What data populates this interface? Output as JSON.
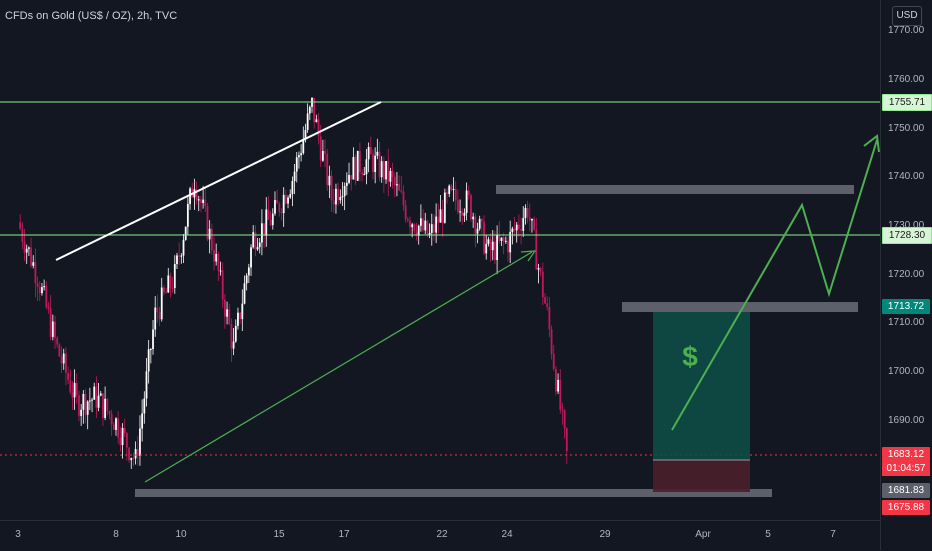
{
  "header": {
    "symbol_title": "CFDs on Gold (US$ / OZ), 2h, TVC"
  },
  "price_axis": {
    "currency": "USD",
    "ticks": [
      "1770.00",
      "1760.00",
      "1750.00",
      "1740.00",
      "1730.00",
      "1720.00",
      "1710.00",
      "1700.00",
      "1690.00"
    ],
    "labels": {
      "resistance_top": "1755.71",
      "resistance_mid": "1728.30",
      "entry": "1713.72",
      "current_price": "1683.12",
      "countdown": "01:04:57",
      "low_marker": "1681.83",
      "stop": "1675.88"
    }
  },
  "time_axis": {
    "ticks": [
      "3",
      "8",
      "10",
      "15",
      "17",
      "22",
      "24",
      "29",
      "Apr",
      "5",
      "7"
    ]
  },
  "colors": {
    "background": "#131722",
    "up": "#ffffff",
    "down": "#c2185b",
    "level_line": "#90ee90",
    "projection": "#4caf50",
    "zone": "#5d606b",
    "profit_fill": "#0e4d45",
    "loss_fill": "#4a1f2a",
    "price_line": "#f23645"
  },
  "annotations": {
    "profit_symbol": "$"
  },
  "chart_data": {
    "type": "candlestick",
    "title": "CFDs on Gold (US$ / OZ), 2h, TVC",
    "xlabel": "",
    "ylabel": "",
    "ylim": [
      1674,
      1773
    ],
    "x_ticks": [
      "3",
      "8",
      "10",
      "15",
      "17",
      "22",
      "24",
      "29",
      "Apr",
      "5",
      "7"
    ],
    "y_ticks": [
      1690,
      1700,
      1710,
      1720,
      1730,
      1740,
      1750,
      1760,
      1770
    ],
    "approx_close_path": [
      {
        "x": "3",
        "y": 1731
      },
      {
        "x": "4",
        "y": 1720
      },
      {
        "x": "5",
        "y": 1705
      },
      {
        "x": "6",
        "y": 1694
      },
      {
        "x": "7",
        "y": 1695
      },
      {
        "x": "8",
        "y": 1690
      },
      {
        "x": "9",
        "y": 1682
      },
      {
        "x": "10",
        "y": 1712
      },
      {
        "x": "11",
        "y": 1720
      },
      {
        "x": "12",
        "y": 1740
      },
      {
        "x": "13",
        "y": 1725
      },
      {
        "x": "14",
        "y": 1705
      },
      {
        "x": "15",
        "y": 1728
      },
      {
        "x": "16",
        "y": 1732
      },
      {
        "x": "17",
        "y": 1740
      },
      {
        "x": "18",
        "y": 1755
      },
      {
        "x": "19",
        "y": 1736
      },
      {
        "x": "20",
        "y": 1742
      },
      {
        "x": "21",
        "y": 1744
      },
      {
        "x": "22",
        "y": 1740
      },
      {
        "x": "23",
        "y": 1732
      },
      {
        "x": "24",
        "y": 1728
      },
      {
        "x": "25",
        "y": 1736
      },
      {
        "x": "26",
        "y": 1735
      },
      {
        "x": "27",
        "y": 1725
      },
      {
        "x": "28",
        "y": 1727
      },
      {
        "x": "29",
        "y": 1734
      },
      {
        "x": "30",
        "y": 1712
      },
      {
        "x": "31",
        "y": 1683
      }
    ],
    "horizontal_levels": [
      1755.71,
      1728.3
    ],
    "supply_zone": 1737.5,
    "entry_level": 1713.72,
    "support_level": 1675.88,
    "current_price": 1683.12,
    "long_position": {
      "entry": 1683.12,
      "target": 1713.72,
      "stop": 1675.88
    },
    "projection_path": [
      1688,
      1733,
      1717,
      1749
    ],
    "legend": "none",
    "grid": false
  }
}
